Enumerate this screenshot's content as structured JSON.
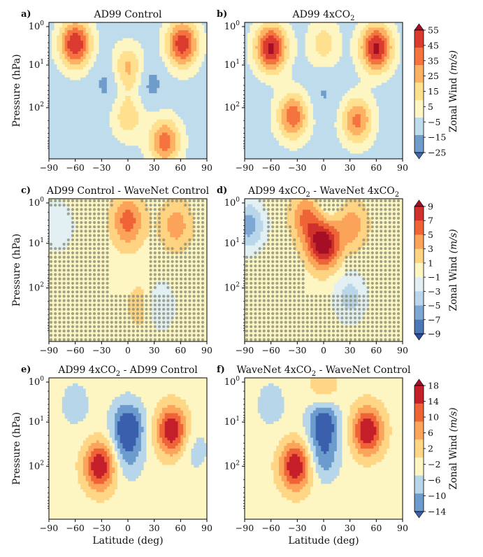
{
  "figure": {
    "ylabel": "Pressure (hPa)",
    "xlabel": "Latitude (deg)"
  },
  "chart_data": [
    {
      "type": "heatmap",
      "panel_label": "a)",
      "title": "AD99 Control",
      "x_ticks": [
        "−90",
        "−60",
        "−30",
        "0",
        "30",
        "60",
        "90"
      ],
      "y_ticks": [
        "10^0",
        "10^1",
        "10^2"
      ],
      "xlim": [
        -90,
        90
      ],
      "ylim_hPa": [
        1,
        1000
      ],
      "y_scale": "log",
      "ylabel": "Pressure (hPa)",
      "xlabel": "",
      "colorbar_group": 0,
      "features": [
        {
          "lat": -60,
          "logp": 0.5,
          "value": 55,
          "kind": "westerly jet"
        },
        {
          "lat": 62,
          "logp": 0.5,
          "value": 52,
          "kind": "westerly jet"
        },
        {
          "lat": 0,
          "logp": 1.1,
          "value": 30,
          "kind": "equatorial westerly"
        },
        {
          "lat": 0,
          "logp": 2.2,
          "value": 22,
          "kind": "equatorial westerly"
        },
        {
          "lat": -20,
          "logp": 1.4,
          "value": -10,
          "kind": "easterly"
        },
        {
          "lat": 22,
          "logp": 1.4,
          "value": -10,
          "kind": "easterly"
        },
        {
          "lat": 42,
          "logp": 2.8,
          "value": 40,
          "kind": "westerly max"
        }
      ],
      "stippling": false
    },
    {
      "type": "heatmap",
      "panel_label": "b)",
      "title": "AD99 4xCO",
      "title_sub": "2",
      "x_ticks": [
        "−90",
        "−60",
        "−30",
        "0",
        "30",
        "60",
        "90"
      ],
      "y_ticks": [
        "10^0",
        "10^1",
        "10^2"
      ],
      "xlim": [
        -90,
        90
      ],
      "ylim_hPa": [
        1,
        1000
      ],
      "y_scale": "log",
      "xlabel": "",
      "colorbar_group": 0,
      "features": [
        {
          "lat": -60,
          "logp": 0.6,
          "value": 58,
          "kind": "westerly jet"
        },
        {
          "lat": 60,
          "logp": 0.6,
          "value": 58,
          "kind": "westerly jet"
        },
        {
          "lat": -35,
          "logp": 2.2,
          "value": 42,
          "kind": "westerly max"
        },
        {
          "lat": 38,
          "logp": 2.3,
          "value": 38,
          "kind": "westerly max"
        },
        {
          "lat": 0,
          "logp": 0.5,
          "value": 20,
          "kind": "equatorial westerly"
        },
        {
          "lat": 0,
          "logp": 1.7,
          "value": -6,
          "kind": "easterly"
        }
      ],
      "stippling": false
    },
    {
      "type": "heatmap",
      "panel_label": "c)",
      "title": "AD99 Control - WaveNet Control",
      "x_ticks": [
        "−90",
        "−60",
        "−30",
        "0",
        "30",
        "60",
        "90"
      ],
      "y_ticks": [
        "10^0",
        "10^1",
        "10^2"
      ],
      "xlim": [
        -90,
        90
      ],
      "ylim_hPa": [
        1,
        1000
      ],
      "y_scale": "log",
      "ylabel": "Pressure (hPa)",
      "xlabel": "",
      "colorbar_group": 1,
      "features": [
        {
          "lat": 0,
          "logp": 0.5,
          "value": 6,
          "kind": "positive difference"
        },
        {
          "lat": 55,
          "logp": 0.6,
          "value": 4,
          "kind": "positive difference"
        },
        {
          "lat": -80,
          "logp": 0.6,
          "value": -3,
          "kind": "negative difference"
        },
        {
          "lat": 32,
          "logp": 2.4,
          "value": -5,
          "kind": "negative difference"
        },
        {
          "lat": 20,
          "logp": 2.4,
          "value": 4,
          "kind": "positive difference"
        }
      ],
      "stippling": true
    },
    {
      "type": "heatmap",
      "panel_label": "d)",
      "title": "AD99 4xCO",
      "title_sub": "2",
      "title_rest": " - WaveNet 4xCO",
      "title_sub2": "2",
      "x_ticks": [
        "−90",
        "−60",
        "−30",
        "0",
        "30",
        "60",
        "90"
      ],
      "y_ticks": [
        "10^0",
        "10^1",
        "10^2"
      ],
      "xlim": [
        -90,
        90
      ],
      "ylim_hPa": [
        1,
        1000
      ],
      "y_scale": "log",
      "xlabel": "",
      "colorbar_group": 1,
      "features": [
        {
          "lat": 0,
          "logp": 1.0,
          "value": 11,
          "kind": "positive difference"
        },
        {
          "lat": -18,
          "logp": 0.4,
          "value": 6,
          "kind": "positive difference"
        },
        {
          "lat": 32,
          "logp": 0.6,
          "value": 4,
          "kind": "positive difference"
        },
        {
          "lat": 0,
          "logp": 0.3,
          "value": -3,
          "kind": "negative difference"
        },
        {
          "lat": -85,
          "logp": 0.6,
          "value": -6,
          "kind": "negative difference"
        },
        {
          "lat": 30,
          "logp": 2.2,
          "value": -4,
          "kind": "negative difference"
        }
      ],
      "stippling": true
    },
    {
      "type": "heatmap",
      "panel_label": "e)",
      "title": "AD99 4xCO",
      "title_sub": "2",
      "title_rest": " - AD99 Control",
      "x_ticks": [
        "−90",
        "−60",
        "−30",
        "0",
        "30",
        "60",
        "90"
      ],
      "y_ticks": [
        "10^0",
        "10^1",
        "10^2"
      ],
      "xlim": [
        -90,
        90
      ],
      "ylim_hPa": [
        1,
        1000
      ],
      "y_scale": "log",
      "ylabel": "Pressure (hPa)",
      "xlabel": "Latitude (deg)",
      "colorbar_group": 2,
      "features": [
        {
          "lat": -32,
          "logp": 2.0,
          "value": 18,
          "kind": "positive change"
        },
        {
          "lat": 50,
          "logp": 1.2,
          "value": 18,
          "kind": "positive change"
        },
        {
          "lat": 0,
          "logp": 1.1,
          "value": -14,
          "kind": "negative change"
        },
        {
          "lat": 0,
          "logp": 1.8,
          "value": -6,
          "kind": "negative change"
        },
        {
          "lat": -60,
          "logp": 0.6,
          "value": -4,
          "kind": "negative change"
        },
        {
          "lat": 75,
          "logp": 1.6,
          "value": -4,
          "kind": "negative change"
        }
      ],
      "stippling": false
    },
    {
      "type": "heatmap",
      "panel_label": "f)",
      "title": "WaveNet 4xCO",
      "title_sub": "2",
      "title_rest": " - WaveNet Control",
      "x_ticks": [
        "−90",
        "−60",
        "−30",
        "0",
        "30",
        "60",
        "90"
      ],
      "y_ticks": [
        "10^0",
        "10^1",
        "10^2"
      ],
      "xlim": [
        -90,
        90
      ],
      "ylim_hPa": [
        1,
        1000
      ],
      "y_scale": "log",
      "xlabel": "Latitude (deg)",
      "colorbar_group": 2,
      "features": [
        {
          "lat": -32,
          "logp": 2.0,
          "value": 18,
          "kind": "positive change"
        },
        {
          "lat": 50,
          "logp": 1.2,
          "value": 18,
          "kind": "positive change"
        },
        {
          "lat": 0,
          "logp": 1.0,
          "value": -14,
          "kind": "negative change"
        },
        {
          "lat": 0,
          "logp": 1.8,
          "value": -8,
          "kind": "negative change"
        },
        {
          "lat": 0,
          "logp": 0.3,
          "value": 6,
          "kind": "positive change"
        },
        {
          "lat": -60,
          "logp": 0.6,
          "value": -4,
          "kind": "negative change"
        }
      ],
      "stippling": false
    }
  ],
  "colorbars": [
    {
      "label": "Zonal Wind",
      "units": "(m/s)",
      "ticks": [
        "55",
        "45",
        "35",
        "25",
        "15",
        "5",
        "−5",
        "−15",
        "−25"
      ],
      "levels": [
        -25,
        -15,
        -5,
        5,
        15,
        25,
        35,
        45,
        55
      ],
      "colors": [
        "#3f68b1",
        "#6f9ccb",
        "#bfdcec",
        "#fdf5c2",
        "#fee08f",
        "#fdb163",
        "#f4733f",
        "#db3a2f",
        "#a50f26"
      ]
    },
    {
      "label": "Zonal Wind",
      "units": "(m/s)",
      "ticks": [
        "9",
        "7",
        "5",
        "3",
        "1",
        "−1",
        "−3",
        "−5",
        "−7",
        "−9"
      ],
      "levels": [
        -9,
        -7,
        -5,
        -3,
        -1,
        1,
        3,
        5,
        7,
        9
      ],
      "colors": [
        "#2c4fa3",
        "#4b78b8",
        "#7ea8d3",
        "#b9d6ea",
        "#e3f0f3",
        "#fdf5c2",
        "#fed382",
        "#fca35a",
        "#ee6437",
        "#d0312c",
        "#a50f26"
      ]
    },
    {
      "label": "Zonal Wind",
      "units": "(m/s)",
      "ticks": [
        "18",
        "14",
        "10",
        "6",
        "2",
        "−2",
        "−6",
        "−10",
        "−14"
      ],
      "levels": [
        -14,
        -10,
        -6,
        -2,
        2,
        6,
        10,
        14,
        18
      ],
      "colors": [
        "#3a5fad",
        "#6c9bcd",
        "#b7d6ea",
        "#fdf5c2",
        "#fed686",
        "#fca45b",
        "#ee6437",
        "#c51f2a",
        "#a50f26"
      ]
    }
  ]
}
